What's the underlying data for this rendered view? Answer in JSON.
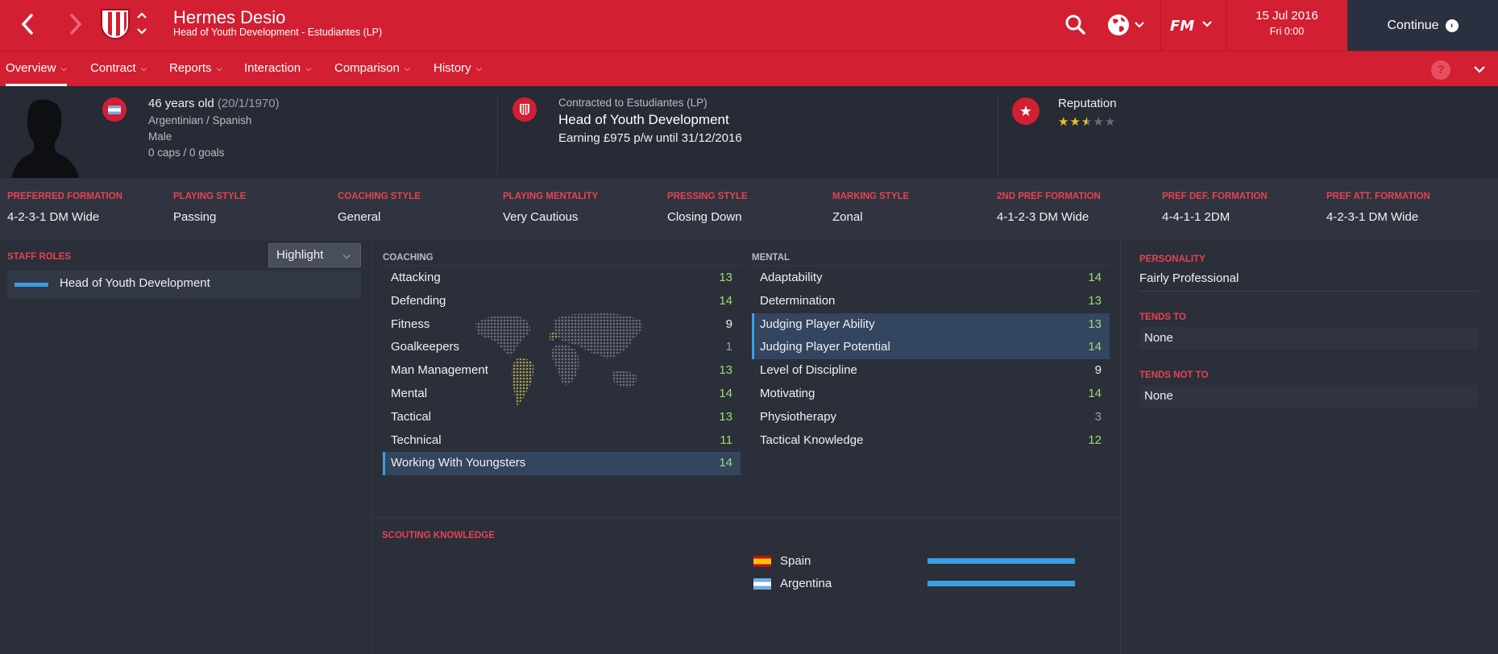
{
  "header": {
    "name": "Hermes Desio",
    "subtitle": "Head of Youth Development - Estudiantes (LP)",
    "date": "15 Jul 2016",
    "time": "Fri 0:00",
    "continue_label": "Continue",
    "brand_color": "#d21f32"
  },
  "tabs": [
    {
      "label": "Overview",
      "active": true
    },
    {
      "label": "Contract"
    },
    {
      "label": "Reports"
    },
    {
      "label": "Interaction"
    },
    {
      "label": "Comparison"
    },
    {
      "label": "History"
    }
  ],
  "info": {
    "age": "46 years old",
    "dob": "(20/1/1970)",
    "nationality": "Argentinian / Spanish",
    "gender": "Male",
    "caps": "0 caps / 0 goals",
    "contract_label": "Contracted to Estudiantes (LP)",
    "role": "Head of Youth Development",
    "earning": "Earning £975 p/w until 31/12/2016",
    "reputation_label": "Reputation",
    "reputation_stars": 2.5,
    "reputation_max": 5
  },
  "styles": [
    {
      "label": "PREFERRED FORMATION",
      "value": "4-2-3-1 DM Wide"
    },
    {
      "label": "PLAYING STYLE",
      "value": "Passing"
    },
    {
      "label": "COACHING STYLE",
      "value": "General"
    },
    {
      "label": "PLAYING MENTALITY",
      "value": "Very Cautious"
    },
    {
      "label": "PRESSING STYLE",
      "value": "Closing Down"
    },
    {
      "label": "MARKING STYLE",
      "value": "Zonal"
    },
    {
      "label": "2ND PREF FORMATION",
      "value": "4-1-2-3 DM Wide"
    },
    {
      "label": "PREF DEF. FORMATION",
      "value": "4-4-1-1 2DM"
    },
    {
      "label": "PREF ATT. FORMATION",
      "value": "4-2-3-1 DM Wide"
    }
  ],
  "staff_roles": {
    "header": "STAFF ROLES",
    "highlight_label": "Highlight",
    "roles": [
      "Head of Youth Development"
    ]
  },
  "coaching": {
    "header": "COACHING",
    "attrs": [
      {
        "name": "Attacking",
        "value": "13",
        "tone": "g"
      },
      {
        "name": "Defending",
        "value": "14",
        "tone": "g"
      },
      {
        "name": "Fitness",
        "value": "9",
        "tone": "w"
      },
      {
        "name": "Goalkeepers",
        "value": "1",
        "tone": "d"
      },
      {
        "name": "Man Management",
        "value": "13",
        "tone": "g"
      },
      {
        "name": "Mental",
        "value": "14",
        "tone": "g"
      },
      {
        "name": "Tactical",
        "value": "13",
        "tone": "g"
      },
      {
        "name": "Technical",
        "value": "11",
        "tone": "g"
      },
      {
        "name": "Working With Youngsters",
        "value": "14",
        "tone": "g",
        "highlight": true
      }
    ]
  },
  "mental": {
    "header": "MENTAL",
    "attrs": [
      {
        "name": "Adaptability",
        "value": "14",
        "tone": "g"
      },
      {
        "name": "Determination",
        "value": "13",
        "tone": "g"
      },
      {
        "name": "Judging Player Ability",
        "value": "13",
        "tone": "g",
        "highlight": true
      },
      {
        "name": "Judging Player Potential",
        "value": "14",
        "tone": "g",
        "highlight": true
      },
      {
        "name": "Level of Discipline",
        "value": "9",
        "tone": "w"
      },
      {
        "name": "Motivating",
        "value": "14",
        "tone": "g"
      },
      {
        "name": "Physiotherapy",
        "value": "3",
        "tone": "d"
      },
      {
        "name": "Tactical Knowledge",
        "value": "12",
        "tone": "g"
      }
    ]
  },
  "personality": {
    "header": "PERSONALITY",
    "value": "Fairly Professional",
    "tends_to_header": "TENDS TO",
    "tends_to": "None",
    "tends_not_to_header": "TENDS NOT TO",
    "tends_not_to": "None"
  },
  "scouting": {
    "header": "SCOUTING KNOWLEDGE",
    "countries": [
      {
        "name": "Spain",
        "knowledge": 1.0
      },
      {
        "name": "Argentina",
        "knowledge": 1.0
      }
    ]
  }
}
